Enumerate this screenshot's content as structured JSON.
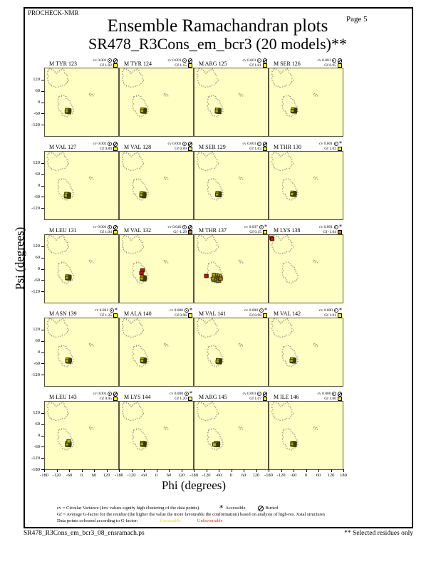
{
  "page": {
    "app": "PROCHECK-NMR",
    "page_label": "Page  5",
    "title": "Ensemble Ramachandran plots",
    "subtitle": "SR478_R3Cons_em_bcr3 (20 models)**",
    "footer_left": "SR478_R3Cons_em_bcr3_08_ensramach.ps",
    "footer_right": "** Selected residues only"
  },
  "icons": {
    "accessible": "*",
    "dial": "circular-variance-dial",
    "buried": "buried-circle"
  },
  "legend": {
    "line1": "cv = Circular Variance (low values signify high clustering of the data points).",
    "accessible_label": "Accessible",
    "buried_label": "Buried",
    "line2": "Gf = Average G-factor for the residue (the higher the value the more favourable the conformation)  based on analysis of high-res. Xstal structures",
    "line3": "Data points coloured according to G-factor:",
    "favourable_label": "Favourable",
    "unfavourable_label": "Unfavourable"
  },
  "colors": {
    "plot_bg": "#ffffc4",
    "grid_line": "#55553d",
    "region_dash": "#9a9a85",
    "point_olive": "#b5b300",
    "point_olive_stroke": "#3a3a00",
    "point_red": "#cc1111",
    "point_red_stroke": "#550000",
    "point_orange": "#cc6600",
    "point_orange_stroke": "#552200",
    "gf_favourable": "#ffff00",
    "gf_unfavourable": "#dd7700",
    "buried_icon": "#ffe100",
    "favourable_text": "#f0d800",
    "unfavourable_text": "#ff2200"
  },
  "chart_data": {
    "type": "scatter",
    "title": "Ensemble Ramachandran plots",
    "subtitle": "SR478_R3Cons_em_bcr3 (20 models)**",
    "xlabel": "Phi (degrees)",
    "ylabel": "Psi (degrees)",
    "xlim": [
      -180,
      180
    ],
    "ylim": [
      -180,
      180
    ],
    "xticks": [
      -180,
      -120,
      -60,
      0,
      60,
      120
    ],
    "xtick_end": 180,
    "yticks": [
      120,
      60,
      0,
      -60,
      -120
    ],
    "ytick_end": -180,
    "grid": {
      "cols": 4,
      "rows": 5
    },
    "models_per_residue": 20,
    "regions": {
      "beta": [
        [
          -160,
          178
        ],
        [
          -146,
          178
        ],
        [
          -146,
          171
        ],
        [
          -136,
          171
        ],
        [
          -136,
          161
        ],
        [
          -127,
          161
        ],
        [
          -127,
          153
        ],
        [
          -117,
          153
        ],
        [
          -117,
          161
        ],
        [
          -109,
          161
        ],
        [
          -109,
          171
        ],
        [
          -99,
          171
        ],
        [
          -99,
          178
        ],
        [
          -91,
          178
        ],
        [
          -91,
          168
        ],
        [
          -84,
          168
        ],
        [
          -84,
          155
        ],
        [
          -76,
          155
        ],
        [
          -76,
          140
        ],
        [
          -69,
          140
        ],
        [
          -69,
          124
        ],
        [
          -63,
          124
        ],
        [
          -63,
          110
        ],
        [
          -70,
          110
        ],
        [
          -70,
          100
        ],
        [
          -80,
          100
        ],
        [
          -80,
          92
        ],
        [
          -95,
          92
        ],
        [
          -95,
          85
        ],
        [
          -114,
          85
        ],
        [
          -114,
          80
        ],
        [
          -134,
          80
        ],
        [
          -134,
          85
        ],
        [
          -147,
          85
        ],
        [
          -147,
          92
        ],
        [
          -155,
          92
        ],
        [
          -155,
          102
        ],
        [
          -161,
          102
        ],
        [
          -161,
          115
        ],
        [
          -167,
          115
        ],
        [
          -167,
          131
        ],
        [
          -163,
          131
        ],
        [
          -163,
          148
        ],
        [
          -167,
          148
        ],
        [
          -167,
          163
        ],
        [
          -160,
          163
        ],
        [
          -160,
          178
        ]
      ],
      "alpha": [
        [
          -112,
          30
        ],
        [
          -98,
          30
        ],
        [
          -98,
          36
        ],
        [
          -86,
          36
        ],
        [
          -86,
          30
        ],
        [
          -75,
          30
        ],
        [
          -75,
          20
        ],
        [
          -65,
          20
        ],
        [
          -65,
          8
        ],
        [
          -57,
          8
        ],
        [
          -57,
          -5
        ],
        [
          -50,
          -5
        ],
        [
          -50,
          -20
        ],
        [
          -44,
          -20
        ],
        [
          -44,
          -36
        ],
        [
          -40,
          -36
        ],
        [
          -40,
          -50
        ],
        [
          -46,
          -50
        ],
        [
          -46,
          -61
        ],
        [
          -54,
          -61
        ],
        [
          -54,
          -70
        ],
        [
          -66,
          -70
        ],
        [
          -66,
          -77
        ],
        [
          -82,
          -77
        ],
        [
          -82,
          -70
        ],
        [
          -94,
          -70
        ],
        [
          -94,
          -59
        ],
        [
          -102,
          -59
        ],
        [
          -102,
          -46
        ],
        [
          -110,
          -46
        ],
        [
          -110,
          -32
        ],
        [
          -116,
          -32
        ],
        [
          -116,
          -16
        ],
        [
          -111,
          -16
        ],
        [
          -111,
          -2
        ],
        [
          -116,
          -2
        ],
        [
          -116,
          14
        ],
        [
          -112,
          14
        ],
        [
          -112,
          30
        ]
      ],
      "lalpha": [
        [
          38,
          46
        ],
        [
          50,
          46
        ],
        [
          50,
          42
        ],
        [
          57,
          42
        ],
        [
          57,
          32
        ],
        [
          44,
          32
        ],
        [
          44,
          37
        ],
        [
          38,
          37
        ],
        [
          38,
          46
        ]
      ],
      "lalpha_dot": [
        47,
        39
      ]
    },
    "subplots": [
      {
        "residue": "M TYR 123",
        "cv": "0.001",
        "gf": "1.02",
        "access": "buried",
        "gf_status": "favourable",
        "cluster": {
          "phi": -66,
          "psi": -47,
          "n": 20,
          "spread": 1
        },
        "extras": []
      },
      {
        "residue": "M TYR 124",
        "cv": "0.001",
        "gf": "1.15",
        "access": "buried",
        "gf_status": "favourable",
        "cluster": {
          "phi": -63,
          "psi": -45,
          "n": 20,
          "spread": 1
        },
        "extras": []
      },
      {
        "residue": "M ARG 125",
        "cv": "0.001",
        "gf": "1.01",
        "access": "buried",
        "gf_status": "favourable",
        "cluster": {
          "phi": -64,
          "psi": -46,
          "n": 20,
          "spread": 1
        },
        "extras": []
      },
      {
        "residue": "M SER 126",
        "cv": "0.001",
        "gf": "0.95",
        "access": "buried",
        "gf_status": "favourable",
        "cluster": {
          "phi": -59,
          "psi": -44,
          "n": 20,
          "spread": 1
        },
        "extras": []
      },
      {
        "residue": "M VAL 127",
        "cv": "0.002",
        "gf": "0.80",
        "access": "buried",
        "gf_status": "favourable",
        "cluster": {
          "phi": -69,
          "psi": -52,
          "n": 20,
          "spread": 1.2
        },
        "extras": []
      },
      {
        "residue": "M VAL 128",
        "cv": "0.002",
        "gf": "0.89",
        "access": "buried",
        "gf_status": "favourable",
        "cluster": {
          "phi": -66,
          "psi": -49,
          "n": 20,
          "spread": 1.2
        },
        "extras": []
      },
      {
        "residue": "M SER 129",
        "cv": "0.001",
        "gf": "1.03",
        "access": "buried",
        "gf_status": "favourable",
        "cluster": {
          "phi": -62,
          "psi": -46,
          "n": 20,
          "spread": 1
        },
        "extras": []
      },
      {
        "residue": "M THR 130",
        "cv": "0.001",
        "gf": "1.02",
        "access": "accessible",
        "gf_status": "favourable",
        "cluster": {
          "phi": -61,
          "psi": -44,
          "n": 20,
          "spread": 1
        },
        "extras": []
      },
      {
        "residue": "M LEU 131",
        "cv": "0.001",
        "gf": "1.04",
        "access": "buried",
        "gf_status": "favourable",
        "cluster": {
          "phi": -65,
          "psi": -46,
          "n": 20,
          "spread": 1
        },
        "extras": []
      },
      {
        "residue": "M VAL 132",
        "cv": "0.040",
        "gf": "-1.29",
        "access": "buried",
        "gf_status": "unfavourable",
        "cluster": {
          "phi": -64,
          "psi": -50,
          "n": 20,
          "spread": 1.1
        },
        "extras": [
          {
            "phi": -68,
            "psi": -8,
            "color": "red"
          },
          {
            "phi": -73,
            "psi": -22,
            "color": "red"
          }
        ]
      },
      {
        "residue": "M THR 137",
        "cv": "0.037",
        "gf": "0.15",
        "access": "accessible",
        "gf_status": "favourable",
        "cluster": {
          "phi": -72,
          "psi": -48,
          "n": 20,
          "spread": 2.4
        },
        "extras": [
          {
            "phi": -122,
            "psi": -38,
            "color": "red"
          },
          {
            "phi": -52,
            "psi": -52,
            "color": "orange"
          }
        ]
      },
      {
        "residue": "M LYS 138",
        "cv": "0.001",
        "gf": "-1.64",
        "access": "accessible",
        "gf_status": "unfavourable",
        "cluster": null,
        "extras": [
          {
            "phi": -172,
            "psi": 166,
            "color": "orange"
          },
          {
            "phi": -166,
            "psi": 159,
            "color": "red"
          }
        ]
      },
      {
        "residue": "M ASN 139",
        "cv": "0.001",
        "gf": "1.25",
        "access": "accessible",
        "gf_status": "favourable",
        "cluster": {
          "phi": -64,
          "psi": -45,
          "n": 20,
          "spread": 1
        },
        "extras": []
      },
      {
        "residue": "M ALA 140",
        "cv": "0.000",
        "gf": "0.96",
        "access": "accessible",
        "gf_status": "favourable",
        "cluster": {
          "phi": -63,
          "psi": -44,
          "n": 20,
          "spread": 1
        },
        "extras": []
      },
      {
        "residue": "M VAL 141",
        "cv": "0.000",
        "gf": "0.98",
        "access": "accessible",
        "gf_status": "favourable",
        "cluster": {
          "phi": -60,
          "psi": -48,
          "n": 20,
          "spread": 1
        },
        "extras": []
      },
      {
        "residue": "M VAL 142",
        "cv": "0.000",
        "gf": "1.01",
        "access": "accessible",
        "gf_status": "favourable",
        "cluster": {
          "phi": -64,
          "psi": -44,
          "n": 20,
          "spread": 1
        },
        "extras": []
      },
      {
        "residue": "M LEU 143",
        "cv": "0.001",
        "gf": "0.95",
        "access": "buried",
        "gf_status": "favourable",
        "cluster": {
          "phi": -65,
          "psi": -46,
          "n": 20,
          "spread": 1
        },
        "extras": [
          {
            "phi": -63,
            "psi": -31,
            "color": "olive"
          }
        ]
      },
      {
        "residue": "M LYS 144",
        "cv": "0.000",
        "gf": "1.20",
        "access": "accessible",
        "gf_status": "favourable",
        "cluster": {
          "phi": -64,
          "psi": -45,
          "n": 20,
          "spread": 1
        },
        "extras": []
      },
      {
        "residue": "M ARG 145",
        "cv": "0.001",
        "gf": "1.07",
        "access": "buried",
        "gf_status": "favourable",
        "cluster": {
          "phi": -70,
          "psi": -46,
          "n": 20,
          "spread": 1
        },
        "extras": [
          {
            "phi": -82,
            "psi": -48,
            "color": "olive"
          }
        ]
      },
      {
        "residue": "M ILE 146",
        "cv": "0.000",
        "gf": "1.00",
        "access": "buried",
        "gf_status": "favourable",
        "cluster": {
          "phi": -61,
          "psi": -45,
          "n": 20,
          "spread": 1
        },
        "extras": []
      }
    ]
  }
}
